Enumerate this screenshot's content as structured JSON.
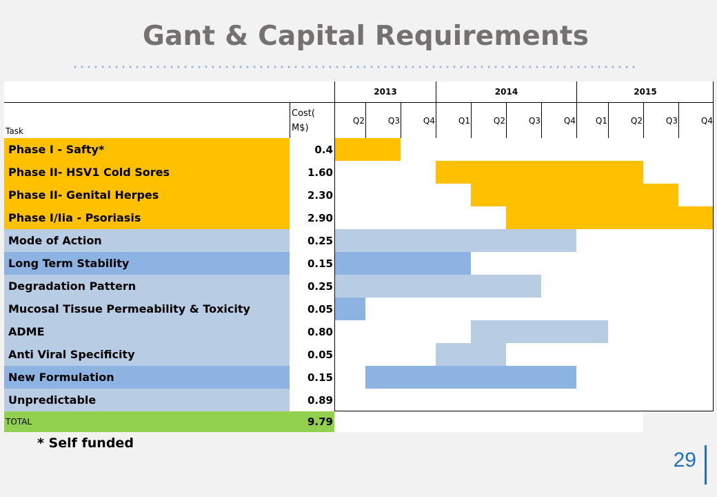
{
  "title": "Gant & Capital Requirements",
  "header": {
    "task_label": "Task",
    "cost_label": "Cost(\nM$)",
    "years": [
      {
        "label": "2013",
        "quarters": 3
      },
      {
        "label": "2014",
        "quarters": 4
      },
      {
        "label": "2015",
        "quarters": 4
      }
    ],
    "quarters": [
      "Q2",
      "Q3",
      "Q4",
      "Q1",
      "Q2",
      "Q3",
      "Q4",
      "Q1",
      "Q2",
      "Q3",
      "Q4"
    ]
  },
  "colors": {
    "phase": "#ffc000",
    "light_blue": "#b8cce4",
    "mid_blue": "#8db3e2",
    "total": "#92d050",
    "white": "#ffffff"
  },
  "rows": [
    {
      "task": "Phase I - Safty*",
      "cost": "0.4",
      "label_color": "phase",
      "bar_color": "phase",
      "start_q": 0,
      "end_q": 1
    },
    {
      "task": "Phase II- HSV1 Cold Sores",
      "cost": "1.60",
      "label_color": "phase",
      "bar_color": "phase",
      "start_q": 3,
      "end_q": 8
    },
    {
      "task": "Phase II- Genital Herpes",
      "cost": "2.30",
      "label_color": "phase",
      "bar_color": "phase",
      "start_q": 4,
      "end_q": 9
    },
    {
      "task": "Phase I/Iia - Psoriasis",
      "cost": "2.90",
      "label_color": "phase",
      "bar_color": "phase",
      "start_q": 5,
      "end_q": 10
    },
    {
      "task": "Mode of Action",
      "cost": "0.25",
      "label_color": "light_blue",
      "bar_color": "light_blue",
      "start_q": 0,
      "end_q": 6
    },
    {
      "task": "Long Term Stability",
      "cost": "0.15",
      "label_color": "mid_blue",
      "bar_color": "mid_blue",
      "start_q": 0,
      "end_q": 3
    },
    {
      "task": "Degradation Pattern",
      "cost": "0.25",
      "label_color": "light_blue",
      "bar_color": "light_blue",
      "start_q": 0,
      "end_q": 5
    },
    {
      "task": "Mucosal Tissue Permeability & Toxicity",
      "cost": "0.05",
      "label_color": "light_blue",
      "bar_color": "mid_blue",
      "start_q": 0,
      "end_q": 0
    },
    {
      "task": "ADME",
      "cost": "0.80",
      "label_color": "light_blue",
      "bar_color": "light_blue",
      "start_q": 4,
      "end_q": 7
    },
    {
      "task": "Anti Viral Specificity",
      "cost": "0.05",
      "label_color": "light_blue",
      "bar_color": "light_blue",
      "start_q": 3,
      "end_q": 4
    },
    {
      "task": "New Formulation",
      "cost": "0.15",
      "label_color": "mid_blue",
      "bar_color": "mid_blue",
      "start_q": 1,
      "end_q": 6
    },
    {
      "task": "Unpredictable",
      "cost": "0.89",
      "label_color": "light_blue",
      "bar_color": null,
      "start_q": null,
      "end_q": null
    }
  ],
  "total": {
    "task": "TOTAL",
    "cost": "9.79"
  },
  "footnote": "* Self funded",
  "page_number": "29"
}
